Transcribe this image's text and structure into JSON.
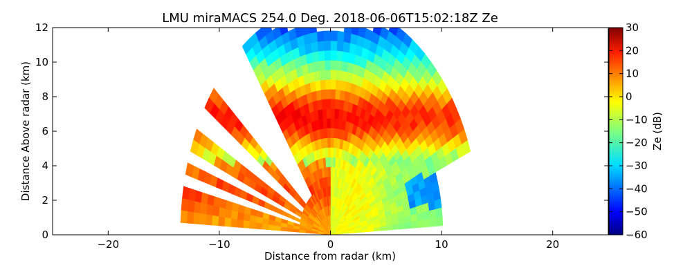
{
  "chart_data": {
    "type": "heatmap",
    "title": "LMU miraMACS 254.0 Deg. 2018-06-06T15:02:18Z  Ze",
    "xlabel": "Distance from radar (km)",
    "ylabel": "Distance Above radar  (km)",
    "xlim": [
      -25,
      25
    ],
    "ylim": [
      0,
      12
    ],
    "x_ticks": [
      -20,
      -10,
      0,
      10,
      20
    ],
    "y_ticks": [
      0,
      2,
      4,
      6,
      8,
      10,
      12
    ],
    "grid": false,
    "scan": {
      "azimuth_deg": 254.0,
      "max_range_km": 13.5,
      "elevation_min_deg": 3,
      "elevation_max_deg": 177
    },
    "colorbar": {
      "label": "Ze (dB)",
      "min": -60,
      "max": 30,
      "ticks": [
        30,
        20,
        10,
        0,
        -10,
        -20,
        -30,
        -40,
        -50,
        -60
      ],
      "colormap": "jet"
    },
    "reflectivity_regions": [
      {
        "region": "upper cloud core, heights 5-10 km",
        "ze_db": 18
      },
      {
        "region": "cloud top near 11-12 km",
        "ze_db": -12
      },
      {
        "region": "lower layer, heights 2-4 km, left side",
        "ze_db": 8
      },
      {
        "region": "near-radar lower right, heights 0-4 km",
        "ze_db": -10
      },
      {
        "region": "weak echo patch near x=8-11 km, height 2-3 km",
        "ze_db": -35
      }
    ]
  }
}
